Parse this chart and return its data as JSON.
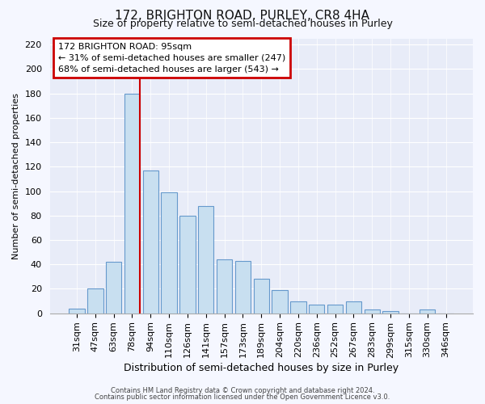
{
  "title": "172, BRIGHTON ROAD, PURLEY, CR8 4HA",
  "subtitle": "Size of property relative to semi-detached houses in Purley",
  "xlabel": "Distribution of semi-detached houses by size in Purley",
  "ylabel": "Number of semi-detached properties",
  "categories": [
    "31sqm",
    "47sqm",
    "63sqm",
    "78sqm",
    "94sqm",
    "110sqm",
    "126sqm",
    "141sqm",
    "157sqm",
    "173sqm",
    "189sqm",
    "204sqm",
    "220sqm",
    "236sqm",
    "252sqm",
    "267sqm",
    "283sqm",
    "299sqm",
    "315sqm",
    "330sqm",
    "346sqm"
  ],
  "values": [
    4,
    20,
    42,
    180,
    117,
    99,
    80,
    88,
    44,
    43,
    28,
    19,
    10,
    7,
    7,
    10,
    3,
    2,
    0,
    3,
    0
  ],
  "bar_color": "#c8dff0",
  "bar_edge_color": "#6699cc",
  "property_line_after_bar": 3,
  "annotation_title": "172 BRIGHTON ROAD: 95sqm",
  "annotation_line1": "← 31% of semi-detached houses are smaller (247)",
  "annotation_line2": "68% of semi-detached houses are larger (543) →",
  "annotation_box_color": "#ffffff",
  "annotation_box_edge": "#cc0000",
  "property_line_color": "#cc0000",
  "ylim": [
    0,
    225
  ],
  "yticks": [
    0,
    20,
    40,
    60,
    80,
    100,
    120,
    140,
    160,
    180,
    200,
    220
  ],
  "footer1": "Contains HM Land Registry data © Crown copyright and database right 2024.",
  "footer2": "Contains public sector information licensed under the Open Government Licence v3.0.",
  "bg_color": "#f5f7ff",
  "plot_bg_color": "#e8ecf8",
  "grid_color": "#ffffff",
  "title_fontsize": 11,
  "subtitle_fontsize": 9,
  "ylabel_fontsize": 8,
  "xlabel_fontsize": 9,
  "tick_fontsize": 8,
  "annotation_fontsize": 8
}
